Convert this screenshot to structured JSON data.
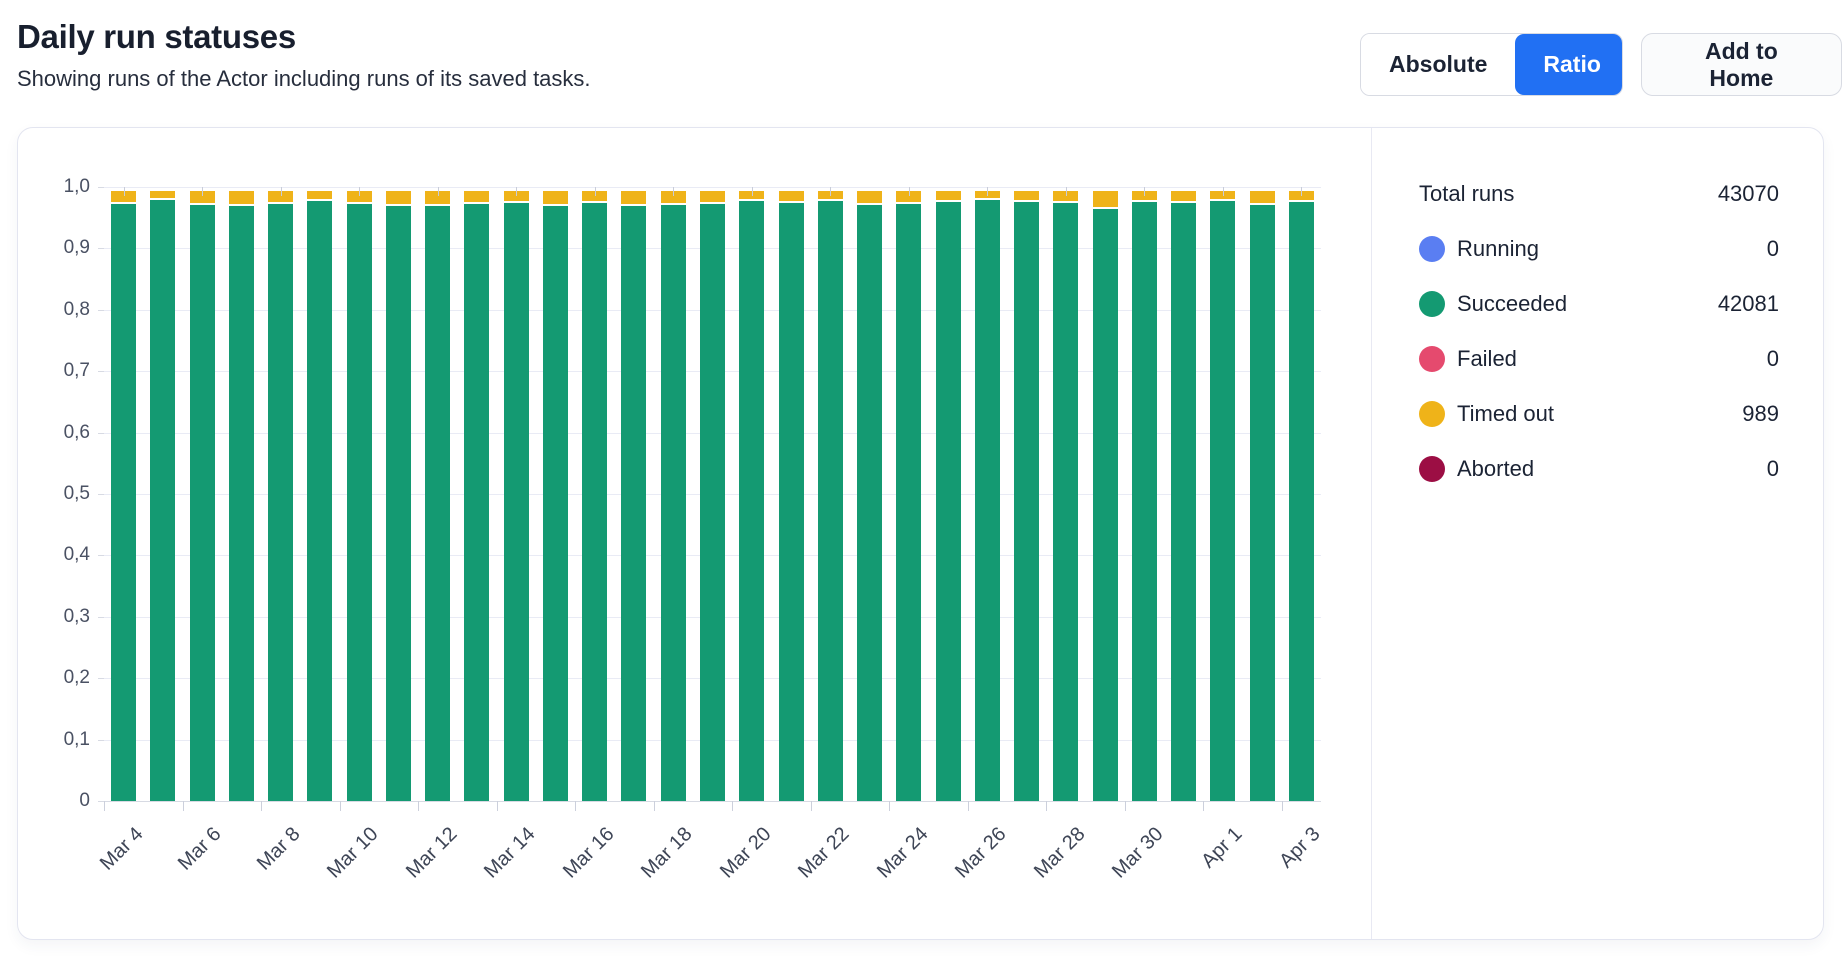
{
  "header": {
    "title": "Daily run statuses",
    "subtitle": "Showing runs of the Actor including runs of its saved tasks."
  },
  "toolbar": {
    "absolute_label": "Absolute",
    "ratio_label": "Ratio",
    "active_mode": "Ratio",
    "add_home_label": "Add to Home",
    "active_color": "#2170f3"
  },
  "legend": {
    "rows": [
      {
        "label": "Total runs",
        "value": "43070",
        "color": null
      },
      {
        "label": "Running",
        "value": "0",
        "color": "#5a7ef2"
      },
      {
        "label": "Succeeded",
        "value": "42081",
        "color": "#149a72"
      },
      {
        "label": "Failed",
        "value": "0",
        "color": "#e54a6e"
      },
      {
        "label": "Timed out",
        "value": "989",
        "color": "#efb319"
      },
      {
        "label": "Aborted",
        "value": "0",
        "color": "#9c0e44"
      }
    ]
  },
  "chart_data": {
    "type": "bar",
    "stacked": true,
    "title": "Daily run statuses (ratio)",
    "xlabel": "",
    "ylabel": "",
    "ylim": [
      0,
      1
    ],
    "grid": true,
    "y_tick_labels": [
      "0",
      "0,1",
      "0,2",
      "0,3",
      "0,4",
      "0,5",
      "0,6",
      "0,7",
      "0,8",
      "0,9",
      "1,0"
    ],
    "categories": [
      "Mar 4",
      "Mar 5",
      "Mar 6",
      "Mar 7",
      "Mar 8",
      "Mar 9",
      "Mar 10",
      "Mar 11",
      "Mar 12",
      "Mar 13",
      "Mar 14",
      "Mar 15",
      "Mar 16",
      "Mar 17",
      "Mar 18",
      "Mar 19",
      "Mar 20",
      "Mar 21",
      "Mar 22",
      "Mar 23",
      "Mar 24",
      "Mar 25",
      "Mar 26",
      "Mar 27",
      "Mar 28",
      "Mar 29",
      "Mar 30",
      "Mar 31",
      "Apr 1",
      "Apr 2",
      "Apr 3"
    ],
    "x_tick_labels": [
      "Mar 4",
      "Mar 6",
      "Mar 8",
      "Mar 10",
      "Mar 12",
      "Mar 14",
      "Mar 16",
      "Mar 18",
      "Mar 20",
      "Mar 22",
      "Mar 24",
      "Mar 26",
      "Mar 28",
      "Mar 30",
      "Apr 1",
      "Apr 3"
    ],
    "series": [
      {
        "name": "Succeeded",
        "color": "#149a72",
        "values": [
          0.975,
          0.982,
          0.974,
          0.973,
          0.976,
          0.981,
          0.975,
          0.972,
          0.973,
          0.975,
          0.977,
          0.973,
          0.978,
          0.972,
          0.974,
          0.976,
          0.981,
          0.977,
          0.98,
          0.974,
          0.976,
          0.979,
          0.982,
          0.979,
          0.977,
          0.967,
          0.979,
          0.977,
          0.98,
          0.974,
          0.979
        ]
      },
      {
        "name": "Timed out",
        "color": "#efb319",
        "values": [
          0.025,
          0.018,
          0.026,
          0.027,
          0.024,
          0.019,
          0.025,
          0.028,
          0.027,
          0.025,
          0.023,
          0.027,
          0.022,
          0.028,
          0.026,
          0.024,
          0.019,
          0.023,
          0.02,
          0.026,
          0.024,
          0.021,
          0.018,
          0.021,
          0.023,
          0.033,
          0.021,
          0.023,
          0.02,
          0.026,
          0.021
        ]
      }
    ],
    "totals": {
      "total_runs": 43070,
      "running": 0,
      "succeeded": 42081,
      "failed": 0,
      "timed_out": 989,
      "aborted": 0
    },
    "legend_position": "right"
  }
}
